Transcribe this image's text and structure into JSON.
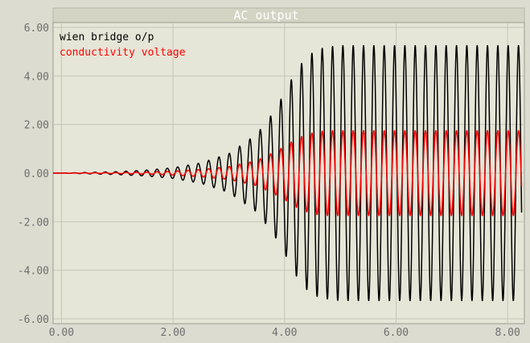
{
  "chart_data": {
    "type": "line",
    "title": "AC output",
    "xlabel": "",
    "ylabel": "",
    "xlim": [
      -0.15,
      8.3
    ],
    "ylim": [
      -6.2,
      6.2
    ],
    "x_ticks": [
      0,
      2,
      4,
      6,
      8
    ],
    "x_tick_labels": [
      "0.00",
      "2.00",
      "4.00",
      "6.00",
      "8.00"
    ],
    "y_ticks": [
      -6,
      -4,
      -2,
      0,
      2,
      4,
      6
    ],
    "y_tick_labels": [
      "-6.00",
      "-4.00",
      "-2.00",
      "0.00",
      "2.00",
      "4.00",
      "6.00"
    ],
    "grid": true,
    "legend_position": "top-left",
    "background": "#dcdcd0",
    "plot_background": "#e6e6d8",
    "grid_color": "#c4c4b8",
    "series": [
      {
        "name": "wien bridge o/p",
        "color": "#000000",
        "frequency_hz": 5.4,
        "x": [
          0.0,
          0.5,
          1.0,
          1.5,
          2.0,
          2.5,
          3.0,
          3.5,
          3.8,
          4.0,
          4.2,
          4.4,
          4.6,
          4.8,
          5.0,
          5.5,
          6.0,
          6.5,
          7.0,
          7.5,
          8.0,
          8.25
        ],
        "envelope": [
          0.0,
          0.03,
          0.06,
          0.12,
          0.22,
          0.42,
          0.8,
          1.6,
          2.5,
          3.3,
          4.2,
          4.8,
          5.1,
          5.2,
          5.25,
          5.25,
          5.25,
          5.25,
          5.25,
          5.25,
          5.25,
          5.25
        ]
      },
      {
        "name": "conductivity voltage",
        "color": "#ff0000",
        "frequency_hz": 5.4,
        "x": [
          0.0,
          0.5,
          1.0,
          1.5,
          2.0,
          2.5,
          3.0,
          3.5,
          3.8,
          4.0,
          4.2,
          4.4,
          4.6,
          4.8,
          5.0,
          5.5,
          6.0,
          6.5,
          7.0,
          7.5,
          8.0,
          8.25
        ],
        "envelope": [
          0.0,
          0.01,
          0.02,
          0.04,
          0.08,
          0.15,
          0.27,
          0.52,
          0.85,
          1.1,
          1.4,
          1.6,
          1.72,
          1.75,
          1.75,
          1.75,
          1.75,
          1.75,
          1.75,
          1.75,
          1.75,
          1.75
        ]
      }
    ]
  }
}
